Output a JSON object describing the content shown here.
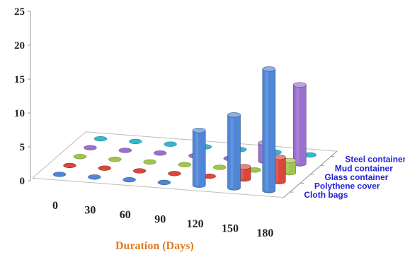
{
  "chart_data": {
    "type": "bar",
    "style": "3d-cylinder",
    "title": "",
    "ylabel": "",
    "xlabel": "Duration (Days)",
    "ylim": [
      0,
      25
    ],
    "yticks": [
      "0",
      "5",
      "10",
      "15",
      "20",
      "25"
    ],
    "categories": [
      "0",
      "30",
      "60",
      "90",
      "120",
      "150",
      "180"
    ],
    "grid": false,
    "series": [
      {
        "name": "Cloth bags",
        "color": "#4f86d6",
        "values": [
          0,
          0,
          0,
          0,
          9,
          12,
          20
        ]
      },
      {
        "name": "Polythene cover",
        "color": "#d9483b",
        "values": [
          0,
          0,
          0,
          0,
          0,
          2,
          4
        ]
      },
      {
        "name": "Glass container",
        "color": "#9fc64a",
        "values": [
          0,
          0,
          0,
          0,
          0,
          0,
          2
        ]
      },
      {
        "name": "Mud container",
        "color": "#9b6fd0",
        "values": [
          0,
          0,
          0,
          0,
          0,
          3,
          13
        ]
      },
      {
        "name": "Steel container",
        "color": "#33b8cf",
        "values": [
          0,
          0,
          0,
          0,
          0,
          0,
          0
        ]
      }
    ],
    "axis_label_color": "#e07b22",
    "depth_label_color": "#1f1fd6"
  }
}
